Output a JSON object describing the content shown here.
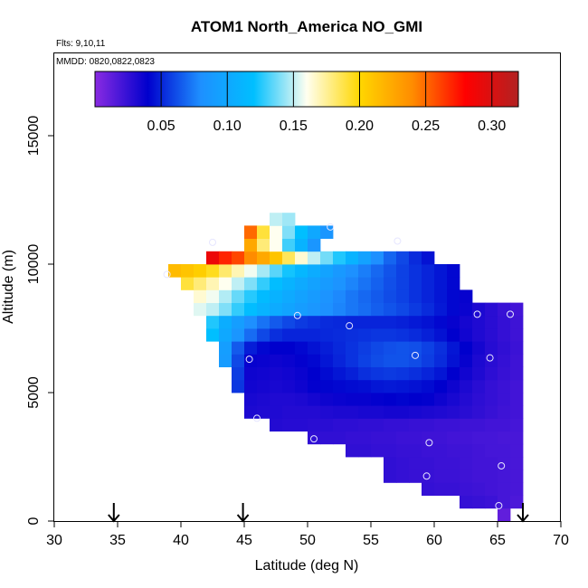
{
  "chart_data": {
    "type": "heatmap",
    "title": "ATOM1 North_America NO_GMI",
    "subtitle_flights": "Flts: 9,10,11",
    "subtitle_dates": "MMDD: 0820,0822,0823",
    "xlabel": "Latitude (deg N)",
    "ylabel": "Altitude (m)",
    "xlim": [
      30,
      70
    ],
    "ylim": [
      0,
      18000
    ],
    "x_ticks": [
      30,
      35,
      40,
      45,
      50,
      55,
      60,
      65,
      70
    ],
    "y_ticks": [
      0,
      5000,
      10000,
      15000
    ],
    "colorbar": {
      "range": [
        0.0,
        0.32
      ],
      "ticks": [
        "0.05",
        "0.10",
        "0.15",
        "0.20",
        "0.25",
        "0.30"
      ],
      "tick_values": [
        0.05,
        0.1,
        0.15,
        0.2,
        0.25,
        0.3
      ],
      "colors": [
        "#8a2be2",
        "#0000cd",
        "#1e90ff",
        "#00bfff",
        "#fffff0",
        "#ffd700",
        "#ff8c00",
        "#ff0000",
        "#b22222"
      ]
    },
    "arrow_latitudes": [
      34.7,
      44.9,
      67.0
    ],
    "cell_size": {
      "lat": 1.0,
      "alt": 500
    },
    "rows": [
      {
        "alt": 250,
        "lat_start": 65,
        "values": [
          0.012
        ]
      },
      {
        "alt": 750,
        "lat_start": 62,
        "values": [
          0.025,
          0.024,
          0.023,
          0.02,
          0.018
        ]
      },
      {
        "alt": 1250,
        "lat_start": 59,
        "values": [
          0.025,
          0.024,
          0.024,
          0.023,
          0.022,
          0.021,
          0.02,
          0.019
        ]
      },
      {
        "alt": 1750,
        "lat_start": 56,
        "values": [
          0.026,
          0.025,
          0.024,
          0.024,
          0.023,
          0.023,
          0.022,
          0.021,
          0.021,
          0.02,
          0.019
        ]
      },
      {
        "alt": 2250,
        "lat_start": 56,
        "values": [
          0.026,
          0.025,
          0.024,
          0.024,
          0.023,
          0.023,
          0.022,
          0.021,
          0.021,
          0.02,
          0.019
        ]
      },
      {
        "alt": 2750,
        "lat_start": 53,
        "values": [
          0.026,
          0.026,
          0.025,
          0.025,
          0.024,
          0.024,
          0.023,
          0.023,
          0.022,
          0.022,
          0.021,
          0.02,
          0.02,
          0.019
        ]
      },
      {
        "alt": 3250,
        "lat_start": 50,
        "values": [
          0.026,
          0.026,
          0.026,
          0.025,
          0.025,
          0.024,
          0.024,
          0.023,
          0.023,
          0.022,
          0.022,
          0.021,
          0.021,
          0.02,
          0.02,
          0.019,
          0.019
        ]
      },
      {
        "alt": 3750,
        "lat_start": 47,
        "values": [
          0.03,
          0.029,
          0.029,
          0.028,
          0.028,
          0.027,
          0.027,
          0.026,
          0.026,
          0.025,
          0.025,
          0.024,
          0.024,
          0.023,
          0.023,
          0.022,
          0.022,
          0.021,
          0.021,
          0.02
        ]
      },
      {
        "alt": 4250,
        "lat_start": 45,
        "values": [
          0.032,
          0.031,
          0.031,
          0.03,
          0.03,
          0.03,
          0.031,
          0.032,
          0.032,
          0.033,
          0.033,
          0.034,
          0.034,
          0.033,
          0.032,
          0.031,
          0.03,
          0.028,
          0.026,
          0.024,
          0.022,
          0.021
        ]
      },
      {
        "alt": 4750,
        "lat_start": 45,
        "values": [
          0.033,
          0.032,
          0.031,
          0.031,
          0.032,
          0.034,
          0.036,
          0.037,
          0.038,
          0.038,
          0.039,
          0.04,
          0.041,
          0.04,
          0.039,
          0.036,
          0.033,
          0.03,
          0.027,
          0.025,
          0.023,
          0.021
        ]
      },
      {
        "alt": 5250,
        "lat_start": 44,
        "values": [
          0.055,
          0.035,
          0.034,
          0.033,
          0.034,
          0.036,
          0.039,
          0.041,
          0.042,
          0.043,
          0.044,
          0.046,
          0.047,
          0.046,
          0.045,
          0.043,
          0.04,
          0.036,
          0.032,
          0.028,
          0.025,
          0.023,
          0.021
        ]
      },
      {
        "alt": 5750,
        "lat_start": 44,
        "values": [
          0.057,
          0.036,
          0.035,
          0.034,
          0.035,
          0.037,
          0.04,
          0.043,
          0.046,
          0.049,
          0.053,
          0.055,
          0.056,
          0.055,
          0.053,
          0.05,
          0.046,
          0.04,
          0.035,
          0.031,
          0.027,
          0.024,
          0.022
        ]
      },
      {
        "alt": 6250,
        "lat_start": 43,
        "values": [
          0.09,
          0.06,
          0.038,
          0.037,
          0.036,
          0.037,
          0.039,
          0.042,
          0.046,
          0.05,
          0.054,
          0.058,
          0.061,
          0.063,
          0.063,
          0.061,
          0.057,
          0.052,
          0.045,
          0.038,
          0.032,
          0.028,
          0.025,
          0.022
        ]
      },
      {
        "alt": 6750,
        "lat_start": 43,
        "values": [
          0.092,
          0.065,
          0.048,
          0.042,
          0.04,
          0.04,
          0.042,
          0.045,
          0.048,
          0.051,
          0.054,
          0.057,
          0.06,
          0.062,
          0.063,
          0.062,
          0.058,
          0.053,
          0.046,
          0.04,
          0.034,
          0.029,
          0.026,
          0.023
        ]
      },
      {
        "alt": 7250,
        "lat_start": 42,
        "values": [
          0.12,
          0.1,
          0.085,
          0.07,
          0.06,
          0.053,
          0.05,
          0.05,
          0.05,
          0.051,
          0.052,
          0.053,
          0.054,
          0.055,
          0.055,
          0.054,
          0.052,
          0.049,
          0.045,
          0.04,
          0.035,
          0.031,
          0.028,
          0.025,
          0.022
        ]
      },
      {
        "alt": 7750,
        "lat_start": 42,
        "values": [
          0.125,
          0.105,
          0.092,
          0.08,
          0.072,
          0.065,
          0.06,
          0.056,
          0.054,
          0.052,
          0.051,
          0.05,
          0.05,
          0.05,
          0.05,
          0.049,
          0.047,
          0.045,
          0.042,
          0.038,
          0.034,
          0.031,
          0.028,
          0.025,
          0.022
        ]
      },
      {
        "alt": 8250,
        "lat_start": 41,
        "values": [
          0.155,
          0.15,
          0.14,
          0.128,
          0.118,
          0.11,
          0.103,
          0.097,
          0.091,
          0.086,
          0.081,
          0.077,
          0.073,
          0.07,
          0.066,
          0.063,
          0.06,
          0.056,
          0.052,
          0.047,
          0.042,
          0.037,
          0.032,
          0.028,
          0.024,
          0.021
        ]
      },
      {
        "alt": 8750,
        "lat_start": 41,
        "values": [
          0.165,
          0.158,
          0.148,
          0.136,
          0.126,
          0.117,
          0.109,
          0.102,
          0.095,
          0.089,
          0.083,
          0.078,
          0.073,
          0.069,
          0.065,
          0.061,
          0.058,
          0.054,
          0.05,
          0.046,
          0.042,
          0.038
        ]
      },
      {
        "alt": 9250,
        "lat_start": 40,
        "values": [
          0.19,
          0.18,
          0.17,
          0.16,
          0.15,
          0.14,
          0.128,
          0.118,
          0.11,
          0.102,
          0.095,
          0.089,
          0.083,
          0.077,
          0.072,
          0.067,
          0.062,
          0.058,
          0.054,
          0.05,
          0.046,
          0.042
        ]
      },
      {
        "alt": 9750,
        "lat_start": 39,
        "values": [
          0.215,
          0.21,
          0.205,
          0.195,
          0.182,
          0.17,
          0.158,
          0.146,
          0.134,
          0.123,
          0.113,
          0.104,
          0.096,
          0.088,
          0.081,
          0.075,
          0.069,
          0.063,
          0.058,
          0.054,
          0.05,
          0.046,
          0.042
        ]
      },
      {
        "alt": 10250,
        "lat_start": 42,
        "values": [
          0.29,
          0.27,
          0.26,
          0.24,
          0.225,
          0.21,
          0.185,
          0.165,
          0.15,
          0.138,
          0.125,
          0.11,
          0.095,
          0.08,
          0.068,
          0.06,
          0.052,
          0.045
        ]
      },
      {
        "alt": 10750,
        "lat_start": 45,
        "values": [
          0.225,
          0.18,
          0.16,
          0.13,
          0.11,
          0.085
        ]
      },
      {
        "alt": 11250,
        "lat_start": 45,
        "values": [
          0.25,
          0.19,
          0.16,
          0.14,
          0.12,
          0.1,
          0.085
        ]
      },
      {
        "alt": 11750,
        "lat_start": 47,
        "values": [
          0.15,
          0.145
        ]
      }
    ],
    "flight_points": [
      {
        "lat": 38.9,
        "alt": 9600
      },
      {
        "lat": 42.5,
        "alt": 10850
      },
      {
        "lat": 51.8,
        "alt": 11450
      },
      {
        "lat": 57.1,
        "alt": 10900
      },
      {
        "lat": 49.2,
        "alt": 8000
      },
      {
        "lat": 53.3,
        "alt": 7600
      },
      {
        "lat": 63.4,
        "alt": 8050
      },
      {
        "lat": 66.0,
        "alt": 8050
      },
      {
        "lat": 45.4,
        "alt": 6300
      },
      {
        "lat": 58.5,
        "alt": 6450
      },
      {
        "lat": 64.4,
        "alt": 6350
      },
      {
        "lat": 46.0,
        "alt": 4000
      },
      {
        "lat": 50.5,
        "alt": 3200
      },
      {
        "lat": 59.6,
        "alt": 3050
      },
      {
        "lat": 65.3,
        "alt": 2150
      },
      {
        "lat": 59.4,
        "alt": 1750
      },
      {
        "lat": 65.1,
        "alt": 600
      }
    ]
  }
}
